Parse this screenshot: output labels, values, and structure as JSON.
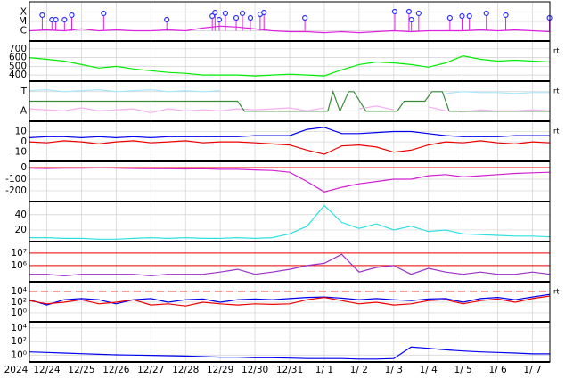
{
  "x_axis": {
    "year": "2024",
    "xlim": [
      -0.5,
      14.5
    ],
    "xticks": [
      {
        "value": 0,
        "label": "12/24"
      },
      {
        "value": 1,
        "label": "12/25"
      },
      {
        "value": 2,
        "label": "12/26"
      },
      {
        "value": 3,
        "label": "12/27"
      },
      {
        "value": 4,
        "label": "12/28"
      },
      {
        "value": 5,
        "label": "12/29"
      },
      {
        "value": 6,
        "label": "12/30"
      },
      {
        "value": 7,
        "label": "12/31"
      },
      {
        "value": 8,
        "label": "1/ 1"
      },
      {
        "value": 9,
        "label": "1/ 2"
      },
      {
        "value": 10,
        "label": "1/ 3"
      },
      {
        "value": 11,
        "label": "1/ 4"
      },
      {
        "value": 12,
        "label": "1/ 5"
      },
      {
        "value": 13,
        "label": "1/ 6"
      },
      {
        "value": 14,
        "label": "1/ 7"
      }
    ],
    "x": [
      -0.5,
      0,
      0.5,
      1,
      1.5,
      2,
      2.5,
      3,
      3.5,
      4,
      4.5,
      5,
      5.5,
      6,
      6.5,
      7,
      7.5,
      8,
      8.5,
      9,
      9.5,
      10,
      10.5,
      11,
      11.5,
      12,
      12.5,
      13,
      13.5,
      14,
      14.5
    ]
  },
  "chart_data": [
    {
      "type": "line",
      "ylim": [
        0,
        4
      ],
      "yticks": [
        {
          "value": 3,
          "label": "X"
        },
        {
          "value": 2,
          "label": "M"
        },
        {
          "value": 1,
          "label": "C"
        }
      ],
      "series": [
        {
          "color": "#e020e0",
          "values": [
            1.0,
            1.1,
            1.0,
            1.2,
            1.0,
            1.1,
            1.0,
            1.0,
            1.1,
            1.0,
            1.3,
            1.5,
            1.4,
            1.2,
            1.0,
            0.9,
            0.9,
            0.8,
            0.9,
            0.8,
            0.9,
            1.0,
            0.9,
            1.0,
            1.0,
            1.0,
            1.1,
            1.0,
            1.1,
            1.0,
            0.9
          ]
        }
      ],
      "events": {
        "color": "#3030ff",
        "x": [
          -0.13,
          0.15,
          0.26,
          0.51,
          0.72,
          1.64,
          3.46,
          4.77,
          4.85,
          4.97,
          5.15,
          5.46,
          5.64,
          5.87,
          6.15,
          6.26,
          7.44,
          10.03,
          10.44,
          10.51,
          10.72,
          11.62,
          11.97,
          12.18,
          12.67,
          13.23,
          14.49
        ],
        "values": [
          2.67,
          2.19,
          2.19,
          2.19,
          2.67,
          2.86,
          2.19,
          2.57,
          2.95,
          2.19,
          2.86,
          2.38,
          2.86,
          2.38,
          2.76,
          2.95,
          2.38,
          3.05,
          3.05,
          2.19,
          2.86,
          2.38,
          2.57,
          2.57,
          2.86,
          2.67,
          2.38
        ]
      }
    },
    {
      "type": "line",
      "ylim": [
        340,
        780
      ],
      "yticks": [
        700,
        600,
        500,
        400
      ],
      "side_label": "rt",
      "series": [
        {
          "color": "#00ee00",
          "values": [
            600,
            580,
            560,
            520,
            480,
            500,
            470,
            450,
            430,
            420,
            400,
            400,
            400,
            390,
            400,
            410,
            400,
            390,
            460,
            520,
            550,
            540,
            520,
            490,
            540,
            620,
            580,
            560,
            570,
            560,
            550
          ]
        }
      ]
    },
    {
      "type": "line",
      "ylim": [
        0,
        4
      ],
      "yticks": [
        {
          "value": 3,
          "label": "T"
        },
        {
          "value": 1,
          "label": "A"
        }
      ],
      "side_label": "rt",
      "series": [
        {
          "color": "#a8e8ff",
          "values": [
            3.1,
            3.2,
            3.0,
            3.1,
            3.2,
            3.0,
            3.1,
            3.2,
            3.0,
            3.1,
            3.0,
            3.1,
            null,
            null,
            null,
            null,
            null,
            null,
            2.9,
            null,
            2.8,
            null,
            null,
            null,
            2.8,
            3.0,
            2.9,
            2.9,
            2.8,
            2.9,
            2.9
          ]
        },
        {
          "color": "#f5b0f0",
          "values": [
            1.2,
            1.1,
            1.0,
            1.3,
            1.0,
            1.1,
            1.2,
            0.8,
            1.2,
            1.0,
            1.1,
            1.0,
            1.2,
            1.1,
            1.2,
            1.3,
            1.0,
            1.3,
            null,
            1.2,
            1.5,
            1.1,
            null,
            1.4,
            1.0,
            0.9,
            1.1,
            1.0,
            1.0,
            1.1,
            1.0
          ]
        },
        {
          "color": "#3a8a3a",
          "x": [
            -0.5,
            5.5,
            5.7,
            8.1,
            8.25,
            8.45,
            8.7,
            8.85,
            9.2,
            9.4,
            10.1,
            10.3,
            10.9,
            11.1,
            11.4,
            11.6,
            14.5
          ],
          "values": [
            2,
            2,
            0.95,
            0.95,
            3,
            0.95,
            3,
            3,
            0.95,
            0.95,
            0.95,
            2,
            2,
            3,
            3,
            0.95,
            0.95
          ]
        }
      ]
    },
    {
      "type": "line",
      "ylim": [
        -18,
        19
      ],
      "yticks": [
        10,
        0,
        -10
      ],
      "side_label": "rt",
      "series": [
        {
          "color": "#0000ee",
          "values": [
            4,
            5,
            5,
            4,
            5,
            4,
            5,
            4,
            5,
            5,
            5,
            5,
            5,
            6,
            6,
            6,
            12,
            14,
            8,
            8,
            9,
            10,
            10,
            8,
            6,
            5,
            5,
            5,
            6,
            6,
            6
          ]
        },
        {
          "color": "#ee0000",
          "values": [
            0,
            -1,
            1,
            0,
            -2,
            0,
            1,
            -1,
            0,
            1,
            -1,
            0,
            0,
            -1,
            -2,
            -3,
            -8,
            -12,
            -4,
            -3,
            -5,
            -10,
            -8,
            -3,
            0,
            -1,
            1,
            -1,
            -2,
            0,
            -1
          ]
        }
      ]
    },
    {
      "type": "line",
      "ylim": [
        -285,
        46
      ],
      "yticks": [
        0,
        -100,
        -200
      ],
      "ref_lines": [
        {
          "value": 0,
          "color": "#ee0000"
        }
      ],
      "series": [
        {
          "color": "#d020d0",
          "values": [
            -5,
            -8,
            -5,
            -5,
            -3,
            -5,
            -8,
            -10,
            -10,
            -12,
            -10,
            -15,
            -15,
            -20,
            -25,
            -40,
            -120,
            -210,
            -170,
            -140,
            -120,
            -100,
            -100,
            -70,
            -60,
            -80,
            -70,
            -60,
            -50,
            -45,
            -40
          ]
        }
      ]
    },
    {
      "type": "line",
      "ylim": [
        6,
        56
      ],
      "yticks": [
        40,
        20
      ],
      "series": [
        {
          "color": "#30e0e0",
          "values": [
            10,
            10,
            9,
            9,
            8,
            8,
            9,
            10,
            9,
            10,
            9,
            9,
            10,
            9,
            10,
            15,
            25,
            52,
            30,
            22,
            28,
            20,
            25,
            18,
            20,
            15,
            14,
            13,
            12,
            12,
            11
          ]
        }
      ]
    },
    {
      "type": "line",
      "log": true,
      "ylim": [
        60000,
        70000000
      ],
      "yticks": [
        {
          "value": 10000000,
          "label": "10⁷"
        },
        {
          "value": 1000000,
          "label": "10⁶"
        }
      ],
      "ref_lines": [
        {
          "value": 10000000,
          "color": "#ee0000"
        },
        {
          "value": 1000000,
          "color": "#ee0000"
        }
      ],
      "series": [
        {
          "color": "#9a30c8",
          "values": [
            200000,
            200000,
            150000,
            200000,
            200000,
            200000,
            200000,
            150000,
            200000,
            200000,
            200000,
            300000,
            500000,
            200000,
            300000,
            500000,
            1000000,
            1500000,
            8000000,
            300000,
            700000,
            1000000,
            200000,
            600000,
            300000,
            200000,
            300000,
            200000,
            200000,
            300000,
            200000
          ]
        }
      ]
    },
    {
      "type": "line",
      "log": true,
      "ylim": [
        0.03,
        500000
      ],
      "yticks": [
        {
          "value": 10000,
          "label": "10⁴"
        },
        {
          "value": 100,
          "label": "10²"
        },
        {
          "value": 1,
          "label": "10⁰"
        }
      ],
      "side_label": "rt",
      "ref_lines": [
        {
          "value": 10000,
          "color": "#ee0000",
          "dashed": true
        }
      ],
      "series": [
        {
          "color": "#0000ee",
          "values": [
            300,
            30,
            300,
            500,
            300,
            50,
            300,
            500,
            100,
            300,
            400,
            100,
            300,
            400,
            300,
            500,
            800,
            1000,
            600,
            300,
            500,
            300,
            200,
            400,
            500,
            100,
            500,
            800,
            300,
            1000,
            3000
          ]
        },
        {
          "color": "#ee0000",
          "values": [
            200,
            50,
            100,
            300,
            50,
            100,
            300,
            30,
            50,
            20,
            100,
            50,
            30,
            50,
            40,
            50,
            300,
            800,
            200,
            50,
            100,
            30,
            50,
            200,
            300,
            50,
            200,
            400,
            100,
            500,
            1500
          ]
        }
      ]
    },
    {
      "type": "line",
      "log": true,
      "ylim": [
        0.13,
        60000
      ],
      "yticks": [
        {
          "value": 10000,
          "label": "10⁴"
        },
        {
          "value": 100,
          "label": "10²"
        },
        {
          "value": 1,
          "label": "10⁰"
        }
      ],
      "series": [
        {
          "color": "#0000ee",
          "values": [
            3,
            2.5,
            2,
            1.6,
            1.3,
            1.1,
            1.0,
            0.9,
            0.8,
            0.7,
            0.6,
            0.5,
            0.5,
            0.4,
            0.4,
            0.35,
            0.3,
            0.3,
            0.3,
            0.25,
            0.25,
            0.3,
            15,
            10,
            6,
            4,
            3,
            2.5,
            2,
            1.5,
            1.5
          ]
        }
      ]
    }
  ]
}
